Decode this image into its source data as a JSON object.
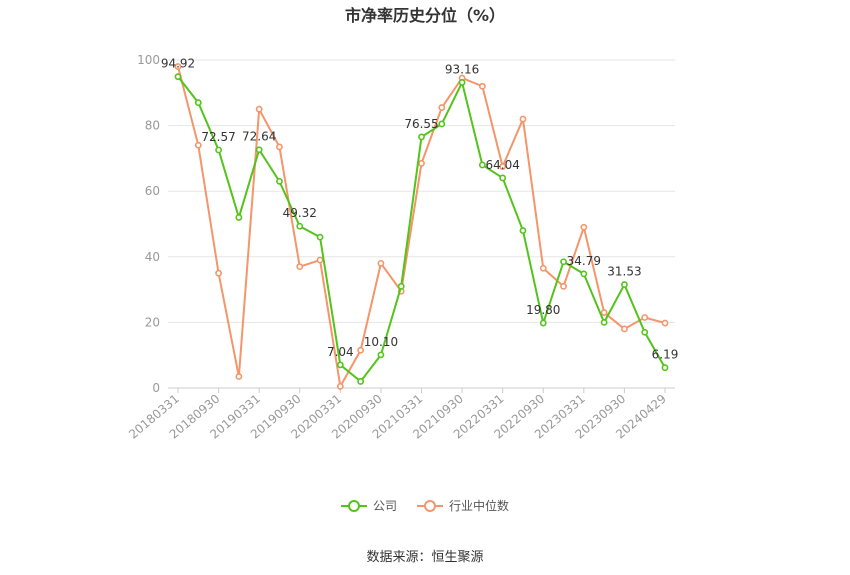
{
  "chart_data": {
    "type": "line",
    "title": "市净率历史分位（%）",
    "ylim": [
      0,
      100
    ],
    "y_ticks": [
      0,
      20,
      40,
      60,
      80,
      100
    ],
    "x_tick_labels": [
      "20180331",
      "20180930",
      "20190331",
      "20190930",
      "20200331",
      "20200930",
      "20210331",
      "20210930",
      "20220331",
      "20220930",
      "20230331",
      "20230930",
      "20240429"
    ],
    "x": [
      "20180331",
      "20180630",
      "20180930",
      "20181231",
      "20190331",
      "20190630",
      "20190930",
      "20191231",
      "20200331",
      "20200630",
      "20200930",
      "20201231",
      "20210331",
      "20210630",
      "20210930",
      "20211231",
      "20220331",
      "20220630",
      "20220930",
      "20221231",
      "20230331",
      "20230630",
      "20230930",
      "20231231",
      "20240429"
    ],
    "series": [
      {
        "name": "公司",
        "color": "#52c41a",
        "values": [
          94.92,
          87,
          72.57,
          52,
          72.64,
          63,
          49.32,
          46,
          7.04,
          2,
          10.1,
          31,
          76.55,
          80.5,
          93.16,
          68,
          64.04,
          48,
          19.8,
          38.5,
          34.79,
          20,
          31.53,
          17,
          6.19
        ],
        "labels": {
          "0": "94.92",
          "2": "72.57",
          "4": "72.64",
          "6": "49.32",
          "8": "7.04",
          "10": "10.10",
          "12": "76.55",
          "14": "93.16",
          "16": "64.04",
          "18": "19.80",
          "20": "34.79",
          "22": "31.53",
          "24": "6.19"
        }
      },
      {
        "name": "行业中位数",
        "color": "#f4956a",
        "values": [
          98,
          74,
          35,
          3.5,
          85,
          73.5,
          37,
          39,
          0.5,
          11.5,
          38,
          29.5,
          68.5,
          85.5,
          94.5,
          92,
          67.5,
          82,
          36.5,
          31,
          49,
          23,
          18,
          21.5,
          19.8
        ]
      }
    ]
  },
  "source_text": "数据来源：恒生聚源"
}
